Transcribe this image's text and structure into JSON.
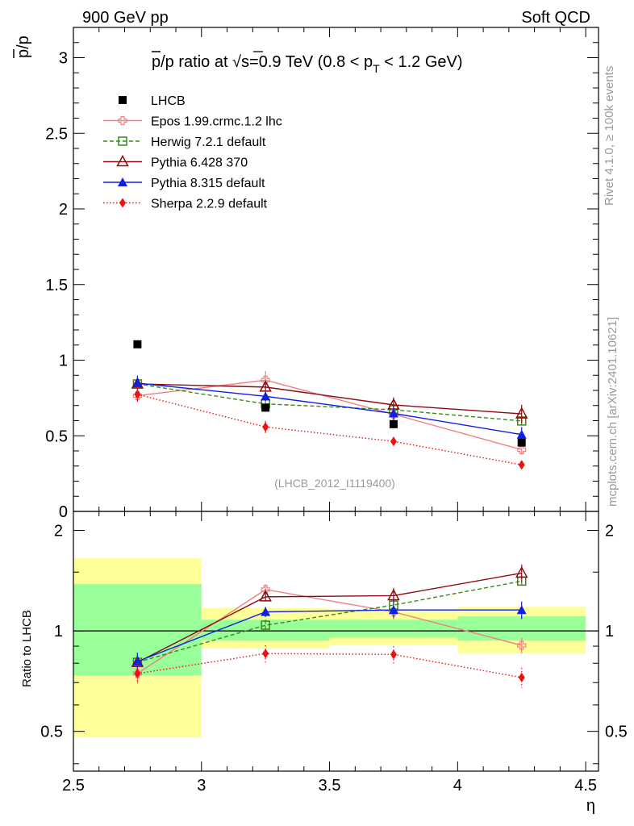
{
  "header": {
    "left": "900 GeV pp",
    "right": "Soft QCD"
  },
  "side_labels": {
    "rivet": "Rivet 4.1.0, ≥ 100k events",
    "mcplots": "mcplots.cern.ch [arXiv:2401.10621]"
  },
  "chart_data": {
    "type": "scatter",
    "title_parts": {
      "pre": "p",
      "mid": "/p ratio at √",
      "s": "s",
      "post": "=0.9 TeV (0.8 < p",
      "sub": "T",
      "end": " < 1.2 GeV)"
    },
    "analysis_id": "(LHCB_2012_I1119400)",
    "xlabel": "η",
    "ylabel_main_num": "p",
    "ylabel_main_den": "/p",
    "ylabel_ratio": "Ratio to LHCB",
    "x_ticks": [
      "2.5",
      "3",
      "3.5",
      "4",
      "4.5"
    ],
    "main": {
      "xlim": [
        2.5,
        4.55
      ],
      "ylim": [
        0.0,
        3.2
      ],
      "y_ticks": [
        "0.5",
        "1",
        "1.5",
        "2",
        "2.5",
        "3"
      ],
      "bins": [
        {
          "lo": 2.5,
          "hi": 3.0,
          "x": 2.75
        },
        {
          "lo": 3.0,
          "hi": 3.5,
          "x": 3.25
        },
        {
          "lo": 3.5,
          "hi": 4.0,
          "x": 3.75
        },
        {
          "lo": 4.0,
          "hi": 4.5,
          "x": 4.25
        }
      ],
      "data": {
        "name": "LHCB",
        "values": [
          1.105,
          0.686,
          0.577,
          0.455
        ],
        "color": "#000000"
      },
      "series": [
        {
          "name": "Epos 1.99.crmc.1.2 lhc",
          "color": "#f08080",
          "dash": "",
          "marker": "open-cross",
          "values": [
            0.765,
            0.868,
            0.642,
            0.408
          ],
          "errors": [
            0.03,
            0.06,
            0.04,
            0.03
          ]
        },
        {
          "name": "Herwig 7.2.1 default",
          "color": "#3a8a1a",
          "dash": "5,3",
          "marker": "open-square",
          "values": [
            0.843,
            0.711,
            0.672,
            0.598
          ],
          "errors": [
            0.03,
            0.03,
            0.03,
            0.03
          ]
        },
        {
          "name": "Pythia 6.428 370",
          "color": "#8b0c14",
          "dash": "",
          "marker": "open-triangle",
          "values": [
            0.843,
            0.822,
            0.704,
            0.645
          ],
          "errors": [
            0.03,
            0.03,
            0.05,
            0.06
          ]
        },
        {
          "name": "Pythia 8.315 default",
          "color": "#1020e0",
          "dash": "",
          "marker": "filled-triangle",
          "values": [
            0.848,
            0.761,
            0.648,
            0.508
          ],
          "errors": [
            0.05,
            0.03,
            0.05,
            0.05
          ]
        },
        {
          "name": "Sherpa 2.2.9 default",
          "color": "#ee1111",
          "dash": "1.5,2.5",
          "marker": "filled-diamond",
          "values": [
            0.774,
            0.558,
            0.463,
            0.308
          ],
          "errors": [
            0.05,
            0.04,
            0.03,
            0.02
          ]
        }
      ]
    },
    "ratio": {
      "ylim": [
        0.38,
        2.28
      ],
      "log": true,
      "y_ticks": [
        "0.5",
        "1",
        "2"
      ],
      "bands": [
        {
          "lo": 2.5,
          "hi": 3.0,
          "yellow": [
            0.48,
            1.65
          ],
          "green": [
            0.735,
            1.38
          ]
        },
        {
          "lo": 3.0,
          "hi": 3.5,
          "yellow": [
            0.885,
            1.17
          ],
          "green": [
            0.935,
            1.08
          ]
        },
        {
          "lo": 3.5,
          "hi": 4.0,
          "yellow": [
            0.905,
            1.16
          ],
          "green": [
            0.955,
            1.08
          ]
        },
        {
          "lo": 4.0,
          "hi": 4.5,
          "yellow": [
            0.855,
            1.18
          ],
          "green": [
            0.935,
            1.105
          ]
        }
      ],
      "reference_line": 1.0,
      "series": [
        {
          "name": "Epos 1.99.crmc.1.2 lhc",
          "values": [
            0.745,
            1.33,
            1.14,
            0.905
          ],
          "errors": [
            0.05,
            0.05,
            0.06,
            0.05
          ]
        },
        {
          "name": "Herwig 7.2.1 default",
          "values": [
            0.805,
            1.04,
            1.195,
            1.41
          ],
          "errors": [
            0.04,
            0.04,
            0.05,
            0.06
          ]
        },
        {
          "name": "Pythia 6.428 370",
          "values": [
            0.805,
            1.265,
            1.275,
            1.49
          ],
          "errors": [
            0.04,
            0.04,
            0.07,
            0.09
          ]
        },
        {
          "name": "Pythia 8.315 default",
          "values": [
            0.81,
            1.14,
            1.155,
            1.155
          ],
          "errors": [
            0.05,
            0.04,
            0.06,
            0.07
          ]
        },
        {
          "name": "Sherpa 2.2.9 default",
          "values": [
            0.745,
            0.855,
            0.85,
            0.725
          ],
          "errors": [
            0.05,
            0.05,
            0.05,
            0.05
          ]
        }
      ]
    }
  }
}
